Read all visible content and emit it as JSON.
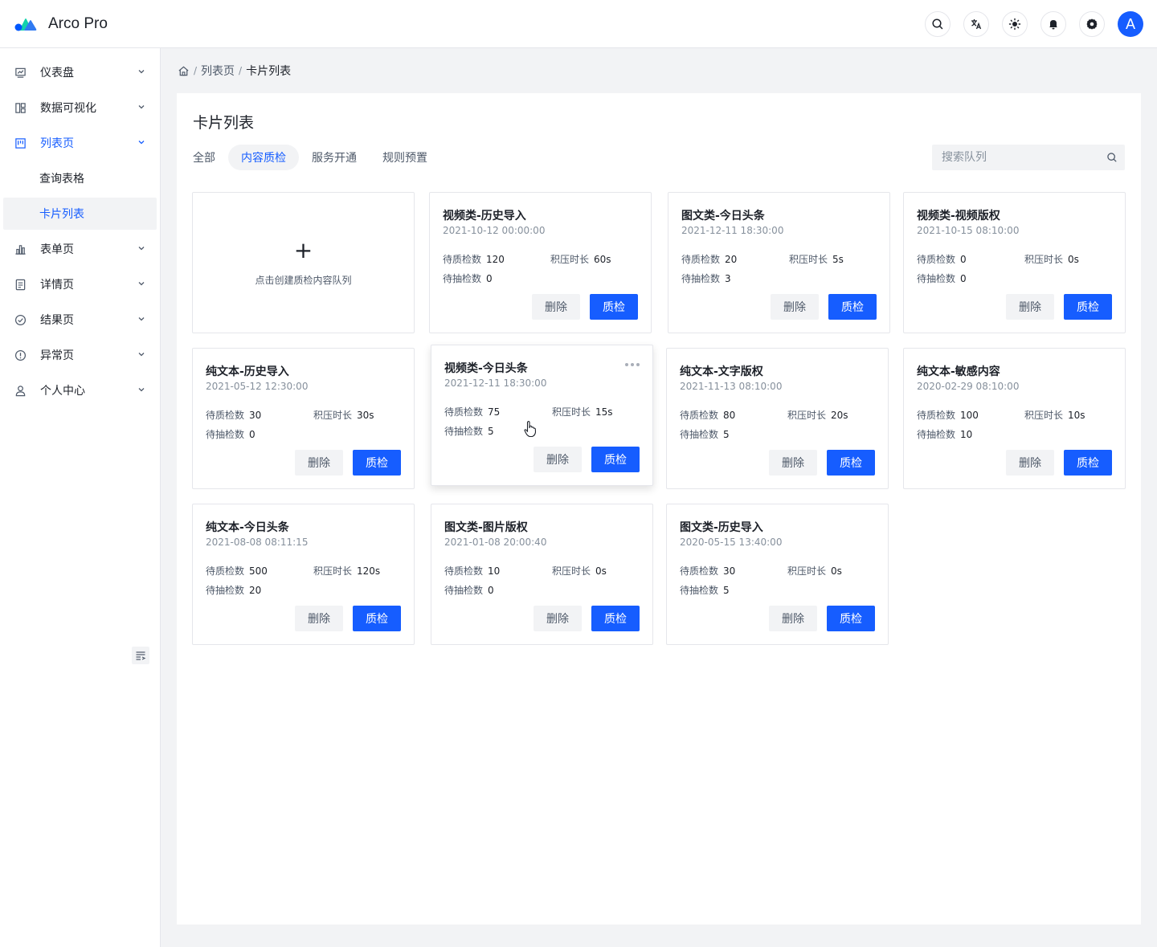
{
  "app": {
    "title": "Arco Pro",
    "brand_color": "#165dff"
  },
  "header": {
    "icons": [
      "search-icon",
      "translate-icon",
      "sun-icon",
      "bell-icon",
      "gear-icon"
    ],
    "avatar_letter": "A"
  },
  "sidebar": {
    "items": [
      {
        "label": "仪表盘",
        "icon": "dashboard-icon"
      },
      {
        "label": "数据可视化",
        "icon": "layout-icon"
      },
      {
        "label": "列表页",
        "icon": "list-icon"
      },
      {
        "label": "表单页",
        "icon": "bar-chart-icon"
      },
      {
        "label": "详情页",
        "icon": "file-icon"
      },
      {
        "label": "结果页",
        "icon": "check-circle-icon"
      },
      {
        "label": "异常页",
        "icon": "exclamation-circle-icon"
      },
      {
        "label": "个人中心",
        "icon": "user-icon"
      }
    ],
    "sub_items": [
      {
        "label": "查询表格"
      },
      {
        "label": "卡片列表"
      }
    ]
  },
  "breadcrumb": {
    "level1": "列表页",
    "level2": "卡片列表"
  },
  "page": {
    "title": "卡片列表",
    "tabs": [
      "全部",
      "内容质检",
      "服务开通",
      "规则预置"
    ],
    "active_tab": "内容质检",
    "search_placeholder": "搜索队列"
  },
  "labels": {
    "add_text": "点击创建质检内容队列",
    "pending_qc": "待质检数",
    "backlog_time": "积压时长",
    "pending_sample": "待抽检数",
    "delete": "删除",
    "qc": "质检"
  },
  "cards": [
    {
      "title": "视频类-历史导入",
      "time": "2021-10-12 00:00:00",
      "qc": "120",
      "backlog": "60s",
      "sample": "0"
    },
    {
      "title": "图文类-今日头条",
      "time": "2021-12-11 18:30:00",
      "qc": "20",
      "backlog": "5s",
      "sample": "3"
    },
    {
      "title": "视频类-视频版权",
      "time": "2021-10-15 08:10:00",
      "qc": "0",
      "backlog": "0s",
      "sample": "0"
    },
    {
      "title": "纯文本-历史导入",
      "time": "2021-05-12 12:30:00",
      "qc": "30",
      "backlog": "30s",
      "sample": "0"
    },
    {
      "title": "视频类-今日头条",
      "time": "2021-12-11 18:30:00",
      "qc": "75",
      "backlog": "15s",
      "sample": "5"
    },
    {
      "title": "纯文本-文字版权",
      "time": "2021-11-13 08:10:00",
      "qc": "80",
      "backlog": "20s",
      "sample": "5"
    },
    {
      "title": "纯文本-敏感内容",
      "time": "2020-02-29 08:10:00",
      "qc": "100",
      "backlog": "10s",
      "sample": "10"
    },
    {
      "title": "纯文本-今日头条",
      "time": "2021-08-08 08:11:15",
      "qc": "500",
      "backlog": "120s",
      "sample": "20"
    },
    {
      "title": "图文类-图片版权",
      "time": "2021-01-08 20:00:40",
      "qc": "10",
      "backlog": "0s",
      "sample": "0"
    },
    {
      "title": "图文类-历史导入",
      "time": "2020-05-15 13:40:00",
      "qc": "30",
      "backlog": "0s",
      "sample": "5"
    }
  ]
}
